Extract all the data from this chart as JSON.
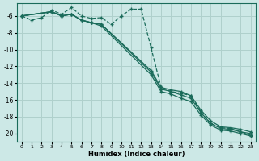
{
  "xlabel": "Humidex (Indice chaleur)",
  "ylabel": "",
  "bg_color": "#cce8e6",
  "grid_color": "#afd0cc",
  "line_color": "#1a6b5a",
  "xlim": [
    -0.5,
    23.5
  ],
  "ylim": [
    -21,
    -4.5
  ],
  "yticks": [
    -6,
    -8,
    -10,
    -12,
    -14,
    -16,
    -18,
    -20
  ],
  "xticks": [
    0,
    1,
    2,
    3,
    4,
    5,
    6,
    7,
    8,
    9,
    10,
    11,
    12,
    13,
    14,
    15,
    16,
    17,
    18,
    19,
    20,
    21,
    22,
    23
  ],
  "lines": [
    {
      "x": [
        0,
        1,
        2,
        3,
        4,
        5,
        6,
        7,
        8,
        9,
        10,
        11,
        12,
        13,
        14,
        15,
        16,
        17,
        18,
        19,
        20,
        21,
        22,
        23
      ],
      "y": [
        -6.0,
        -6.5,
        -6.2,
        -5.3,
        -5.8,
        -5.0,
        -6.0,
        -6.3,
        -6.2,
        -7.0,
        -6.0,
        -5.2,
        -5.2,
        -9.8,
        -14.5,
        -15.0,
        -15.2,
        -15.5,
        -17.5,
        -18.8,
        -19.3,
        -19.4,
        -19.8,
        -20.2
      ],
      "marker": "+",
      "linestyle": "--"
    },
    {
      "x": [
        0,
        3,
        4,
        5,
        6,
        7,
        8,
        13,
        14,
        15,
        16,
        17,
        18,
        19,
        20,
        21,
        22,
        23
      ],
      "y": [
        -6.0,
        -5.5,
        -6.0,
        -5.8,
        -6.5,
        -6.8,
        -7.0,
        -12.5,
        -14.5,
        -14.8,
        -15.0,
        -15.5,
        -17.2,
        -18.5,
        -19.2,
        -19.3,
        -19.5,
        -19.8
      ],
      "marker": "+",
      "linestyle": "-"
    },
    {
      "x": [
        0,
        3,
        4,
        5,
        6,
        7,
        8,
        13,
        14,
        15,
        16,
        17,
        18,
        19,
        20,
        21,
        22,
        23
      ],
      "y": [
        -6.0,
        -5.5,
        -6.0,
        -5.8,
        -6.5,
        -6.8,
        -7.0,
        -12.7,
        -14.7,
        -15.0,
        -15.4,
        -15.8,
        -17.5,
        -18.8,
        -19.4,
        -19.5,
        -19.8,
        -20.0
      ],
      "marker": "+",
      "linestyle": "-"
    },
    {
      "x": [
        0,
        3,
        4,
        5,
        6,
        7,
        8,
        13,
        14,
        15,
        16,
        17,
        18,
        19,
        20,
        21,
        22,
        23
      ],
      "y": [
        -6.0,
        -5.5,
        -6.0,
        -5.8,
        -6.5,
        -6.8,
        -7.2,
        -13.0,
        -15.0,
        -15.3,
        -15.8,
        -16.2,
        -17.8,
        -19.0,
        -19.6,
        -19.7,
        -20.0,
        -20.3
      ],
      "marker": "+",
      "linestyle": "-"
    }
  ]
}
